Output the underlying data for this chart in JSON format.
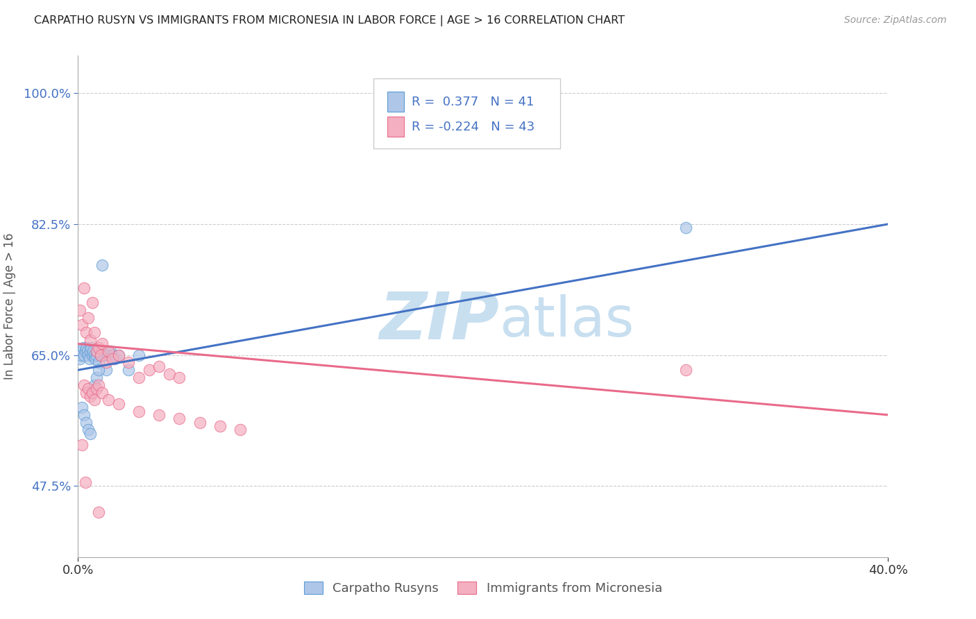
{
  "title": "CARPATHO RUSYN VS IMMIGRANTS FROM MICRONESIA IN LABOR FORCE | AGE > 16 CORRELATION CHART",
  "source": "Source: ZipAtlas.com",
  "xlabel_blue": "Carpatho Rusyns",
  "xlabel_pink": "Immigrants from Micronesia",
  "ylabel": "In Labor Force | Age > 16",
  "xlim": [
    0.0,
    40.0
  ],
  "ylim": [
    38.0,
    105.0
  ],
  "yticks": [
    47.5,
    65.0,
    82.5,
    100.0
  ],
  "xticks": [
    0.0,
    40.0
  ],
  "blue_R": 0.377,
  "blue_N": 41,
  "pink_R": -0.224,
  "pink_N": 43,
  "blue_color": "#aec6e8",
  "pink_color": "#f4afc0",
  "blue_edge_color": "#5b9bd5",
  "pink_edge_color": "#e96a8a",
  "blue_line_color": "#4472c4",
  "pink_line_color": "#e96a8a",
  "watermark_color": "#c8dff0",
  "blue_trend_x0": 0.0,
  "blue_trend_y0": 63.0,
  "blue_trend_x1": 40.0,
  "blue_trend_y1": 82.5,
  "pink_trend_x0": 0.0,
  "pink_trend_y0": 66.5,
  "pink_trend_x1": 40.0,
  "pink_trend_y1": 57.0,
  "blue_scatter_x": [
    0.1,
    0.15,
    0.2,
    0.25,
    0.3,
    0.35,
    0.4,
    0.45,
    0.5,
    0.55,
    0.6,
    0.65,
    0.7,
    0.75,
    0.8,
    0.85,
    0.9,
    0.95,
    1.0,
    1.1,
    1.2,
    1.3,
    1.4,
    1.5,
    1.6,
    1.7,
    1.8,
    2.0,
    2.5,
    3.0,
    0.2,
    0.3,
    0.4,
    0.5,
    0.6,
    0.7,
    0.8,
    0.9,
    1.0,
    30.0,
    1.2
  ],
  "blue_scatter_y": [
    64.5,
    65.0,
    65.5,
    66.0,
    65.0,
    65.5,
    66.0,
    65.5,
    65.0,
    64.5,
    65.5,
    66.0,
    65.0,
    65.5,
    65.0,
    64.5,
    65.0,
    65.5,
    64.0,
    65.0,
    65.5,
    65.0,
    63.0,
    65.0,
    65.5,
    65.0,
    64.5,
    65.0,
    63.0,
    65.0,
    58.0,
    57.0,
    56.0,
    55.0,
    54.5,
    60.0,
    61.0,
    62.0,
    63.0,
    82.0,
    77.0
  ],
  "pink_scatter_x": [
    0.1,
    0.2,
    0.3,
    0.4,
    0.5,
    0.6,
    0.7,
    0.8,
    0.9,
    1.0,
    1.1,
    1.2,
    1.4,
    1.5,
    1.7,
    2.0,
    2.5,
    3.0,
    3.5,
    4.0,
    4.5,
    5.0,
    0.3,
    0.4,
    0.5,
    0.6,
    0.7,
    0.8,
    0.9,
    1.0,
    1.2,
    1.5,
    2.0,
    3.0,
    4.0,
    5.0,
    6.0,
    7.0,
    8.0,
    30.0,
    0.2,
    0.35,
    1.0
  ],
  "pink_scatter_y": [
    71.0,
    69.0,
    74.0,
    68.0,
    70.0,
    67.0,
    72.0,
    68.0,
    65.5,
    66.0,
    65.0,
    66.5,
    64.0,
    65.5,
    64.5,
    65.0,
    64.0,
    62.0,
    63.0,
    63.5,
    62.5,
    62.0,
    61.0,
    60.0,
    60.5,
    59.5,
    60.0,
    59.0,
    60.5,
    61.0,
    60.0,
    59.0,
    58.5,
    57.5,
    57.0,
    56.5,
    56.0,
    55.5,
    55.0,
    63.0,
    53.0,
    48.0,
    44.0
  ]
}
